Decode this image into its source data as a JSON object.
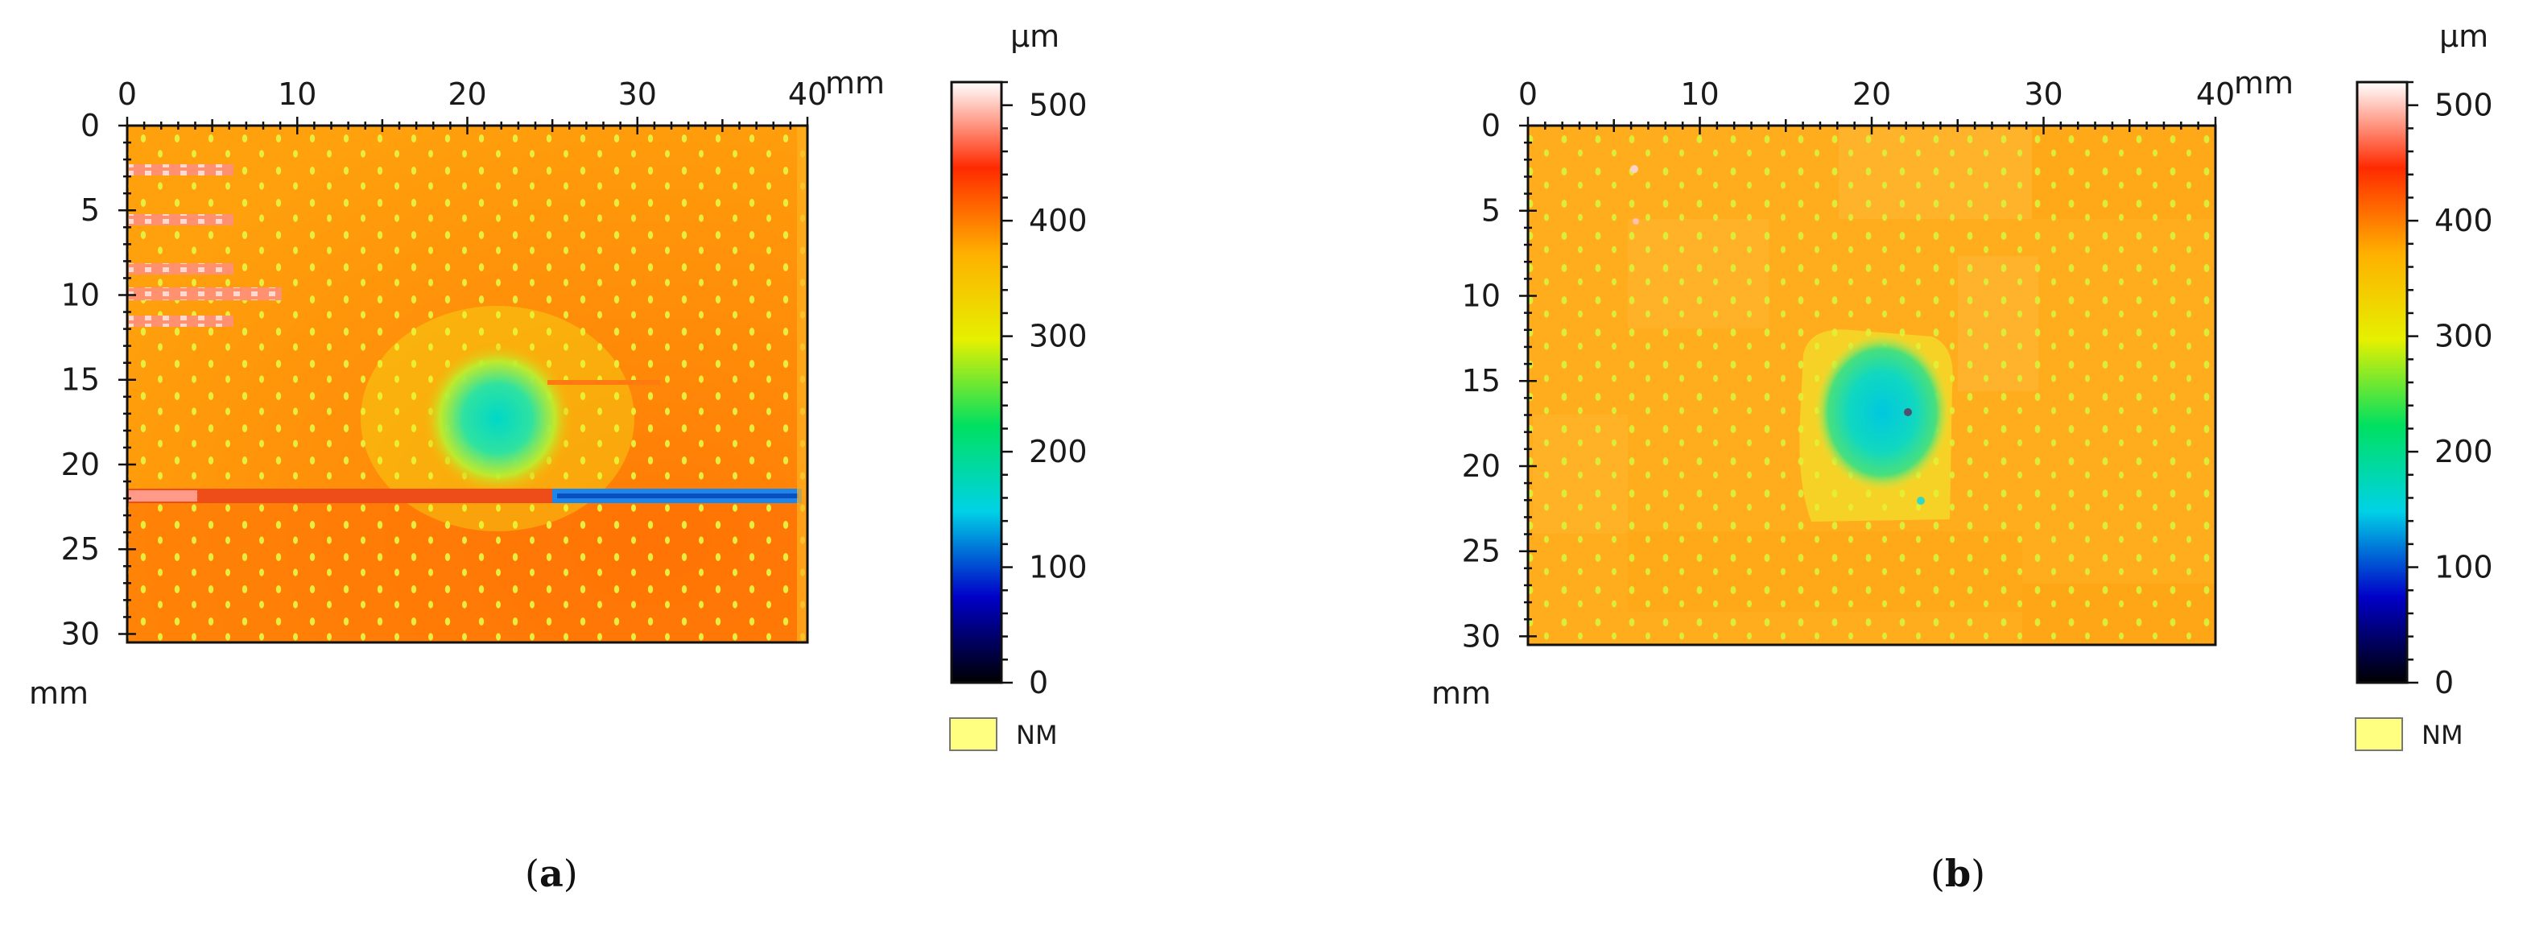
{
  "chart_data": [
    {
      "type": "heatmap",
      "panel_label": "a",
      "x_unit": "mm",
      "y_unit": "mm",
      "xlim": [
        0,
        40
      ],
      "ylim": [
        0,
        30.5
      ],
      "x_ticks": [
        0,
        10,
        20,
        30,
        40
      ],
      "y_ticks": [
        0,
        5,
        10,
        15,
        20,
        25,
        30
      ],
      "colorbar": {
        "unit": "µm",
        "range": [
          0,
          520
        ],
        "ticks": [
          0,
          100,
          200,
          300,
          400,
          500
        ],
        "stops": [
          "#000000",
          "#0000c8",
          "#00d2e6",
          "#00e060",
          "#e6f000",
          "#ffb000",
          "#ff2a00",
          "#ffffff"
        ],
        "nm_label": "NM",
        "nm_color": "#ffff80"
      },
      "background_height_um": 370,
      "features": [
        {
          "kind": "depression",
          "center_x_mm": 21.7,
          "center_y_mm": 17.4,
          "radius_mm": 3.6,
          "min_height_um": 190
        },
        {
          "kind": "stripe",
          "x_range_mm": [
            0,
            25
          ],
          "y_mm": 21.8,
          "height_um": 470
        },
        {
          "kind": "stripe",
          "x_range_mm": [
            25,
            40
          ],
          "y_mm": 21.8,
          "height_um": 120
        },
        {
          "kind": "marks",
          "x_range_mm": [
            0,
            6.5
          ],
          "y_mm": [
            2.7,
            5.7,
            8.5,
            9.8,
            11.5
          ],
          "height_um": 480
        }
      ]
    },
    {
      "type": "heatmap",
      "panel_label": "b",
      "x_unit": "mm",
      "y_unit": "mm",
      "xlim": [
        0,
        40
      ],
      "ylim": [
        0,
        30.5
      ],
      "x_ticks": [
        0,
        10,
        20,
        30,
        40
      ],
      "y_ticks": [
        0,
        5,
        10,
        15,
        20,
        25,
        30
      ],
      "colorbar": {
        "unit": "µm",
        "range": [
          0,
          520
        ],
        "ticks": [
          0,
          100,
          200,
          300,
          400,
          500
        ],
        "stops": [
          "#000000",
          "#0000c8",
          "#00d2e6",
          "#00e060",
          "#e6f000",
          "#ffb000",
          "#ff2a00",
          "#ffffff"
        ],
        "nm_label": "NM",
        "nm_color": "#ffff80"
      },
      "background_height_um": 350,
      "features": [
        {
          "kind": "depression",
          "center_x_mm": 20.5,
          "center_y_mm": 17.0,
          "radius_mm": 3.2,
          "min_height_um": 160
        }
      ]
    }
  ]
}
